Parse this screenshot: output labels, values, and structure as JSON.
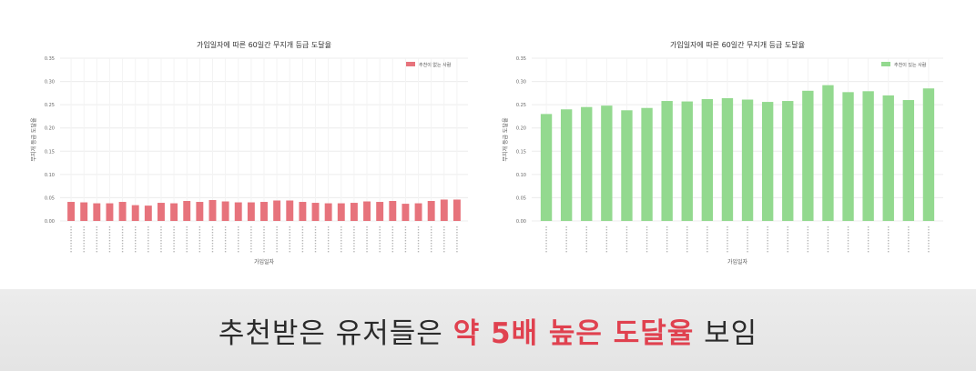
{
  "charts": [
    {
      "type": "bar",
      "title": "가입일자에 따른 60일간 무지개 등급 도달율",
      "xlabel": "가입일자",
      "ylabel": "무지개 등급 도달율",
      "legend": "추천이 없는 사람",
      "legend_position": "top-right",
      "color": "#e7737c",
      "ylim": [
        0,
        0.35
      ],
      "yticks": [
        "0.00",
        "0.05",
        "0.10",
        "0.15",
        "0.20",
        "0.25",
        "0.30",
        "0.35"
      ],
      "grid": true,
      "values": [
        0.041,
        0.04,
        0.038,
        0.038,
        0.041,
        0.034,
        0.033,
        0.039,
        0.038,
        0.043,
        0.041,
        0.045,
        0.042,
        0.04,
        0.04,
        0.041,
        0.044,
        0.044,
        0.041,
        0.039,
        0.038,
        0.038,
        0.039,
        0.042,
        0.041,
        0.043,
        0.037,
        0.038,
        0.043,
        0.046,
        0.046
      ]
    },
    {
      "type": "bar",
      "title": "가입일자에 따른 60일간 무지개 등급 도달율",
      "xlabel": "가입일자",
      "ylabel": "무지개 등급 도달율",
      "legend": "추천이 있는 사람",
      "legend_position": "top-right",
      "color": "#93d98f",
      "ylim": [
        0,
        0.35
      ],
      "yticks": [
        "0.00",
        "0.05",
        "0.10",
        "0.15",
        "0.20",
        "0.25",
        "0.30",
        "0.35"
      ],
      "grid": true,
      "values": [
        0.23,
        0.24,
        0.245,
        0.248,
        0.238,
        0.243,
        0.258,
        0.257,
        0.262,
        0.264,
        0.261,
        0.256,
        0.258,
        0.28,
        0.292,
        0.277,
        0.279,
        0.27,
        0.26,
        0.285
      ]
    }
  ],
  "caption": {
    "part1": "추천받은 유저들은 ",
    "highlight": "약 5배 높은 도달율",
    "part2": " 보임",
    "highlight_color": "#e0414f"
  }
}
